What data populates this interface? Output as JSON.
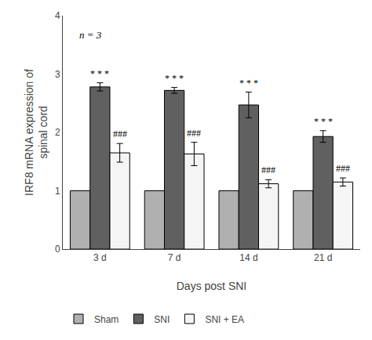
{
  "chart_data": {
    "type": "bar",
    "xlabel": "Days post SNI",
    "ylabel": "IRF8 mRNA expression of\nspinal cord",
    "categories": [
      "3 d",
      "7 d",
      "14 d",
      "21 d"
    ],
    "series": [
      {
        "name": "Sham",
        "color": "#b0b0b0",
        "values": [
          1.0,
          1.0,
          1.0,
          1.0
        ],
        "errors": [
          0.0,
          0.0,
          0.0,
          0.0
        ]
      },
      {
        "name": "SNI",
        "color": "#606060",
        "values": [
          2.78,
          2.72,
          2.47,
          1.93
        ],
        "errors": [
          0.07,
          0.05,
          0.22,
          0.1
        ],
        "annotations": [
          "* * *",
          "* * *",
          "* * *",
          "* * *"
        ]
      },
      {
        "name": "SNI + EA",
        "color": "#f5f5f5",
        "values": [
          1.65,
          1.63,
          1.12,
          1.15
        ],
        "errors": [
          0.16,
          0.2,
          0.07,
          0.07
        ],
        "annotations": [
          "###",
          "###",
          "###",
          "###"
        ]
      }
    ],
    "annotation": "n = 3",
    "ylim": [
      0,
      4
    ],
    "yticks": [
      0,
      1,
      2,
      3,
      4
    ],
    "grid": false,
    "legend": "bottom"
  }
}
